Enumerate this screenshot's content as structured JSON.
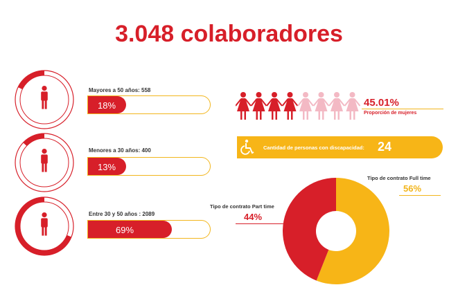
{
  "title": "3.048 colaboradores",
  "age_groups": [
    {
      "label": "Mayores a 50 años: 558",
      "percent_text": "18%",
      "fraction": 0.18
    },
    {
      "label": "Menores a 30 años: 400",
      "percent_text": "13%",
      "fraction": 0.13
    },
    {
      "label": "Entre 30 y 50 años : 2089",
      "percent_text": "69%",
      "fraction": 0.69
    }
  ],
  "women": {
    "percent_text": "45.01%",
    "label": "Proporción de mujeres",
    "figures_filled": 4,
    "figures_total": 8
  },
  "disability": {
    "label": "Cantidad de personas con discapacidad:",
    "value": "24",
    "icon": "wheelchair-icon"
  },
  "colors": {
    "red": "#d71f29",
    "yellow": "#f7b517",
    "pink": "#f3b9c4"
  },
  "chart_data": {
    "type": "pie",
    "categories": [
      "Tipo de contrato Full time",
      "Tipo de contrato Part time"
    ],
    "values": [
      56,
      44
    ],
    "labels": [
      "56%",
      "44%"
    ],
    "colors": [
      "#f7b517",
      "#d71f29"
    ]
  }
}
